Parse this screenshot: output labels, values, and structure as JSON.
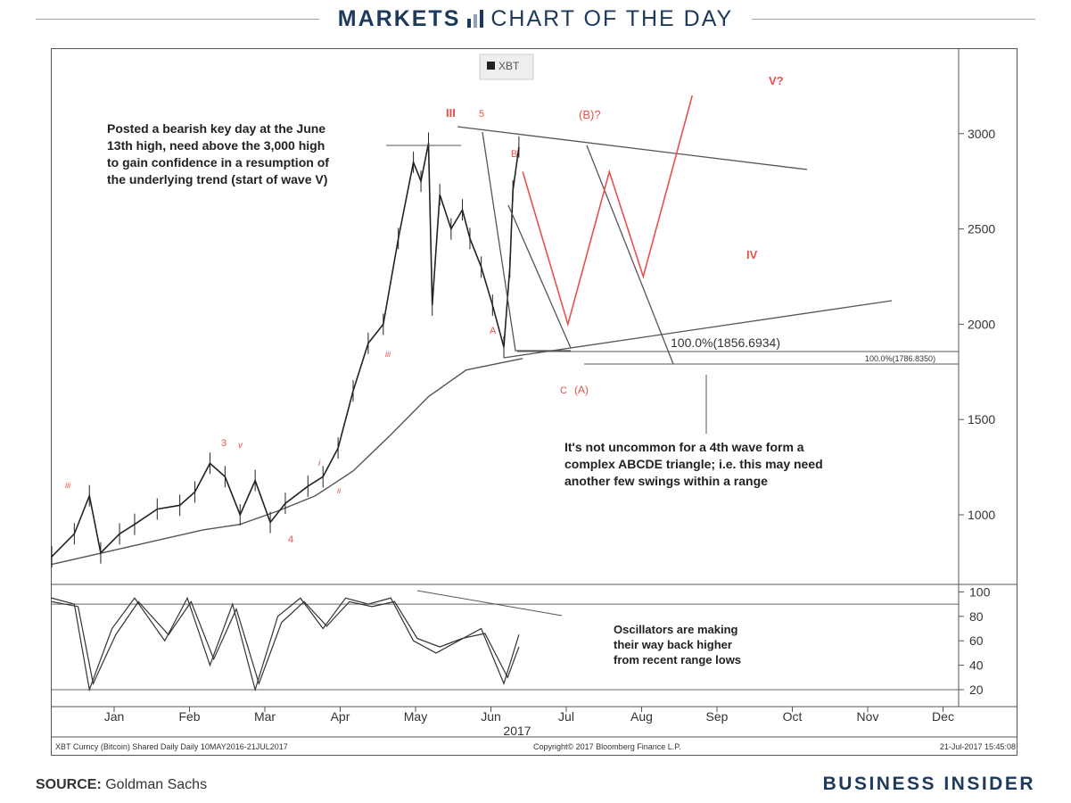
{
  "header": {
    "section": "MARKETS",
    "title": "CHART OF THE DAY"
  },
  "footer": {
    "source_label": "SOURCE:",
    "source_value": "Goldman Sachs",
    "brand": "BUSINESS INSIDER"
  },
  "chart_data": {
    "type": "line",
    "subtype": "candlestick with Elliott wave annotations and oscillator panel",
    "legend": [
      "XBT"
    ],
    "price_axis": {
      "ticks": [
        "3000",
        "2500",
        "2000",
        "1500",
        "1000"
      ],
      "ylim": [
        700,
        3400
      ]
    },
    "oscillator_axis": {
      "ticks": [
        "100",
        "80",
        "60",
        "40",
        "20"
      ],
      "ylim": [
        10,
        105
      ]
    },
    "x_ticks": [
      "Jan",
      "Feb",
      "Mar",
      "Apr",
      "May",
      "Jun",
      "Jul",
      "Aug",
      "Sep",
      "Oct",
      "Nov",
      "Dec"
    ],
    "x_year": "2017",
    "price_series": {
      "name": "XBT",
      "x_month": [
        0.0,
        0.3,
        0.5,
        0.65,
        0.9,
        1.1,
        1.4,
        1.7,
        1.9,
        2.1,
        2.3,
        2.5,
        2.7,
        2.9,
        3.1,
        3.4,
        3.6,
        3.8,
        4.0,
        4.2,
        4.4,
        4.6,
        4.8,
        4.9,
        5.0,
        5.05,
        5.15,
        5.3,
        5.45,
        5.55,
        5.7,
        5.85,
        6.0,
        6.08,
        6.12,
        6.2
      ],
      "y": [
        780,
        900,
        1100,
        800,
        900,
        950,
        1030,
        1050,
        1120,
        1270,
        1200,
        1000,
        1180,
        960,
        1060,
        1150,
        1200,
        1350,
        1650,
        1900,
        2000,
        2450,
        2850,
        2750,
        2950,
        2100,
        2680,
        2500,
        2600,
        2450,
        2300,
        2100,
        1880,
        2300,
        2700,
        2930
      ]
    },
    "moving_average": {
      "x_month": [
        0.0,
        1.0,
        2.0,
        2.5,
        3.0,
        3.5,
        4.0,
        4.5,
        5.0,
        5.5,
        6.0,
        6.25
      ],
      "y": [
        740,
        830,
        920,
        950,
        1020,
        1100,
        1230,
        1420,
        1620,
        1760,
        1800,
        1820
      ]
    },
    "oscillator_series": [
      {
        "x_month": [
          0.0,
          0.3,
          0.5,
          0.8,
          1.1,
          1.5,
          1.8,
          2.1,
          2.4,
          2.7,
          3.0,
          3.3,
          3.6,
          3.9,
          4.2,
          4.5,
          4.8,
          5.1,
          5.4,
          5.7,
          6.0,
          6.2
        ],
        "y": [
          95,
          90,
          20,
          70,
          95,
          60,
          95,
          40,
          90,
          20,
          80,
          95,
          70,
          95,
          90,
          95,
          60,
          50,
          60,
          70,
          25,
          65
        ]
      },
      {
        "x_month": [
          0.0,
          0.35,
          0.55,
          0.85,
          1.15,
          1.55,
          1.85,
          2.15,
          2.45,
          2.75,
          3.05,
          3.35,
          3.65,
          3.95,
          4.25,
          4.55,
          4.85,
          5.15,
          5.45,
          5.75,
          6.05,
          6.2
        ],
        "y": [
          92,
          88,
          25,
          65,
          92,
          65,
          92,
          45,
          86,
          25,
          75,
          92,
          72,
          92,
          88,
          92,
          62,
          55,
          62,
          66,
          30,
          55
        ]
      }
    ],
    "projection": {
      "label": "projected IV / V path",
      "x_month": [
        6.25,
        6.85,
        7.4,
        7.85,
        8.5
      ],
      "y": [
        2800,
        2000,
        2800,
        2250,
        3200
      ]
    },
    "fib_levels": [
      {
        "label": "100.0%(1856.6934)",
        "value": 1856.6934
      },
      {
        "label": "100.0%(1786.8350)",
        "value": 1786.835
      }
    ],
    "wave_labels": [
      "III",
      "5",
      "(B)?",
      "B",
      "A",
      "C",
      "(A)",
      "V?",
      "IV",
      "3",
      "v",
      "4",
      "i",
      "ii",
      "iii",
      "iii"
    ],
    "annotations": [
      "Posted a bearish key day at the June 13th  high, need above the 3,000 high to gain confidence in a resumption of the underlying trend (start of wave V)",
      "It's not uncommon  for  a 4th wave form a complex ABCDE triangle; i.e. this may need another few swings within a range",
      "Oscillators are making their way back higher from recent range lows"
    ],
    "credits": {
      "left": "XBT Curncy (Bitcoin) Shared Daily  Daily 10MAY2016-21JUL2017",
      "center": "Copyright© 2017 Bloomberg Finance L.P.",
      "right": "21-Jul-2017 15:45:08"
    },
    "grid": false
  }
}
